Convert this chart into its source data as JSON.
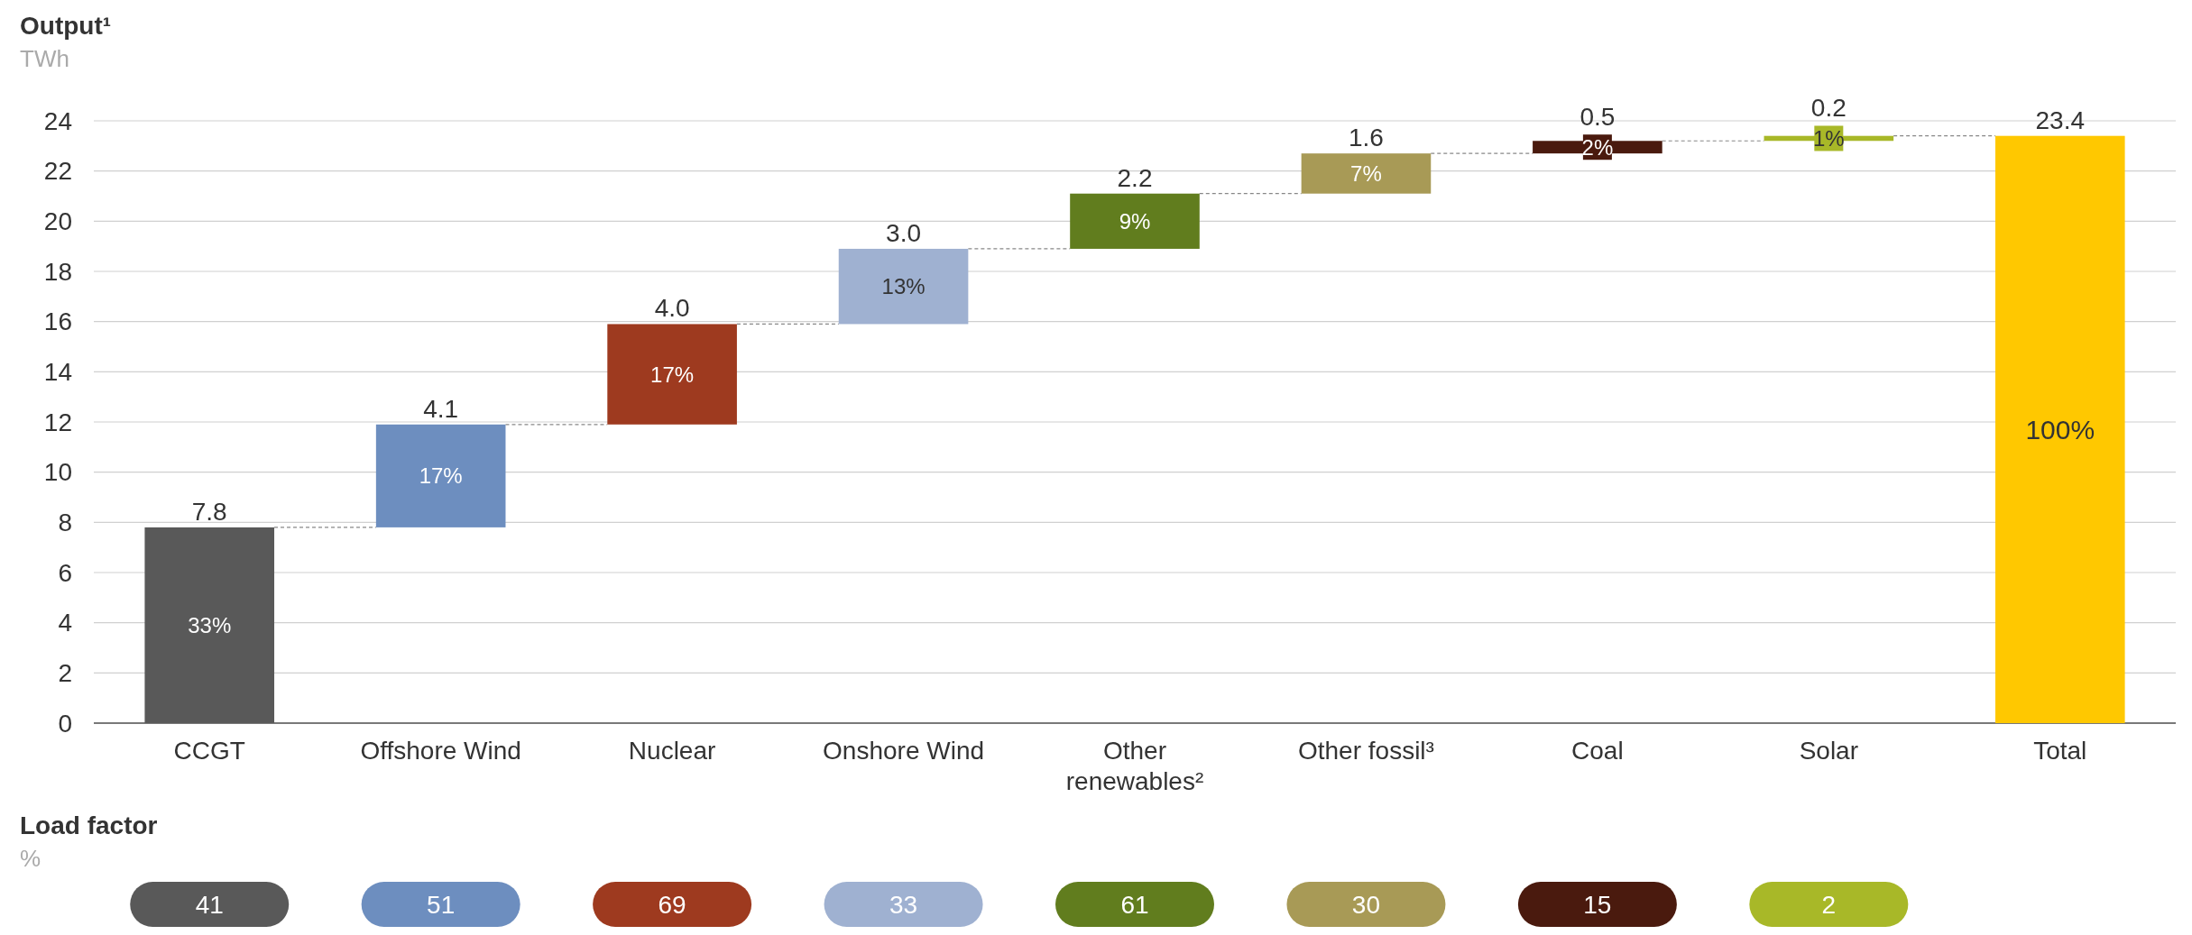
{
  "chart_data": [
    {
      "type": "bar",
      "title": "Output¹",
      "subtitle": "TWh",
      "categories": [
        "CCGT",
        "Offshore Wind",
        "Nuclear",
        "Onshore Wind",
        "Other renewables²",
        "Other fossil³",
        "Coal",
        "Solar",
        "Total"
      ],
      "values": [
        7.8,
        4.1,
        4.0,
        3.0,
        2.2,
        1.6,
        0.5,
        0.2,
        23.4
      ],
      "base": [
        0,
        7.8,
        11.9,
        15.9,
        18.9,
        21.1,
        22.7,
        23.2,
        0
      ],
      "colors": [
        "#595959",
        "#6d8ebf",
        "#9e3a1f",
        "#9fb1d1",
        "#617d1e",
        "#a89a56",
        "#4a1a0e",
        "#a8b828",
        "#ffc800"
      ],
      "value_labels": [
        "7.8",
        "4.1",
        "4.0",
        "3.0",
        "2.2",
        "1.6",
        "0.5",
        "0.2",
        "23.4"
      ],
      "ylim": [
        0,
        24
      ],
      "yticks": [
        0,
        2,
        4,
        6,
        8,
        10,
        12,
        14,
        16,
        18,
        20,
        22,
        24
      ],
      "grid": "y",
      "annotations": [
        "33%",
        "17%",
        "17%",
        "13%",
        "9%",
        "7%",
        "2%",
        "1%",
        "100%"
      ]
    },
    {
      "type": "other",
      "title": "Load factor",
      "subtitle": "%",
      "categories": [
        null,
        null,
        null,
        null,
        null,
        null,
        null,
        null
      ],
      "values": [
        41,
        51,
        69,
        33,
        61,
        30,
        15,
        2
      ],
      "colors": [
        "#595959",
        "#6d8ebf",
        "#9e3a1f",
        "#9fb1d1",
        "#617d1e",
        "#a89a56",
        "#4a1a0e",
        "#a8b828"
      ],
      "data_labels": true
    }
  ]
}
